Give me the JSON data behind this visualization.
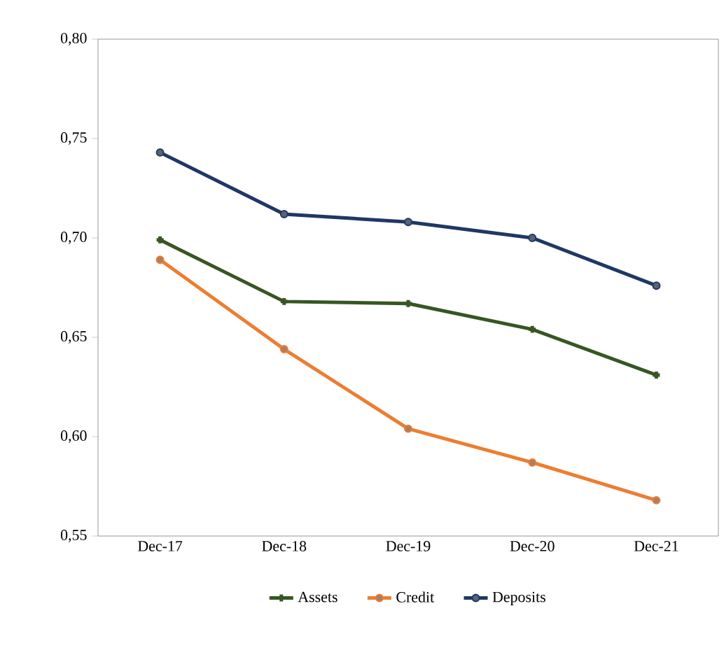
{
  "chart_data": {
    "type": "line",
    "categories": [
      "Dec-17",
      "Dec-18",
      "Dec-19",
      "Dec-20",
      "Dec-21"
    ],
    "series": [
      {
        "name": "Assets",
        "color": "#375623",
        "marker": "cross",
        "values": [
          0.699,
          0.668,
          0.667,
          0.654,
          0.631
        ]
      },
      {
        "name": "Credit",
        "color": "#ed7d31",
        "marker": "circle",
        "values": [
          0.689,
          0.644,
          0.604,
          0.587,
          0.568
        ]
      },
      {
        "name": "Deposits",
        "color": "#1f3864",
        "marker": "circle",
        "values": [
          0.743,
          0.712,
          0.708,
          0.7,
          0.676
        ]
      }
    ],
    "ylim": [
      0.55,
      0.8
    ],
    "yticks": [
      {
        "value": 0.55,
        "label": "0,55"
      },
      {
        "value": 0.6,
        "label": "0,60"
      },
      {
        "value": 0.65,
        "label": "0,65"
      },
      {
        "value": 0.7,
        "label": "0,70"
      },
      {
        "value": 0.75,
        "label": "0,75"
      },
      {
        "value": 0.8,
        "label": "0,80"
      }
    ],
    "grid": false,
    "legend": "bottom",
    "line_style": "solid"
  }
}
